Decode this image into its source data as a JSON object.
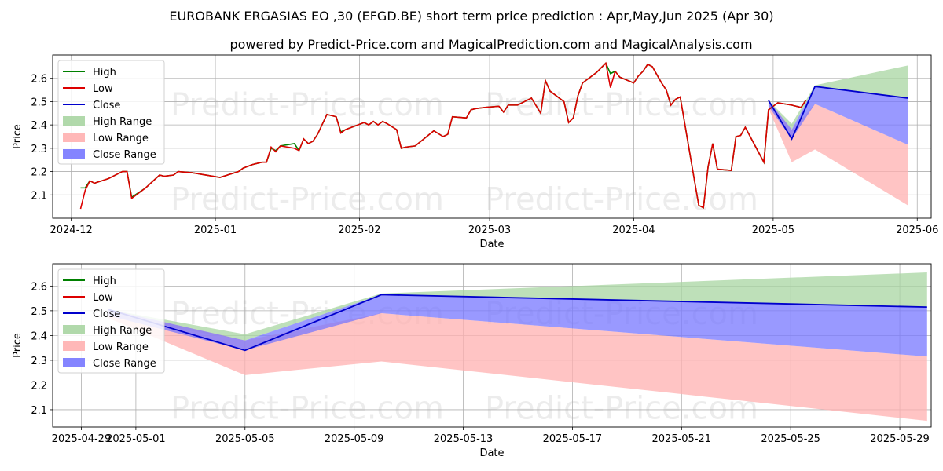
{
  "title": "EUROBANK ERGASIAS EO ,30 (EFGD.BE) short term price prediction : Apr,May,Jun 2025 (Apr 30)",
  "subtitle": "powered by Predict-Price.com and MagicalPrediction.com and MagicalAnalysis.com",
  "watermark": "Predict-Price.com",
  "colors": {
    "high": "#008000",
    "low": "#dd0000",
    "close": "#0000cc",
    "high_range": "#a8d5a2",
    "low_range": "#ffb0b0",
    "close_range": "#7777ff"
  },
  "chart_data": [
    {
      "type": "line",
      "xlabel": "Date",
      "ylabel": "Price",
      "ylim": [
        2.0,
        2.7
      ],
      "x_ticks": [
        "2024-12",
        "2025-01",
        "2025-02",
        "2025-03",
        "2025-04",
        "2025-05",
        "2025-06"
      ],
      "y_ticks": [
        "2.1",
        "2.2",
        "2.3",
        "2.4",
        "2.5",
        "2.6"
      ],
      "grid": true,
      "legend": [
        "High",
        "Low",
        "Close",
        "High Range",
        "Low Range",
        "Close Range"
      ],
      "legend_position": "upper-left",
      "history": [
        [
          "2024-12-03",
          2.13,
          2.04
        ],
        [
          "2024-12-04",
          2.13,
          2.12
        ],
        [
          "2024-12-05",
          2.16,
          2.16
        ],
        [
          "2024-12-06",
          2.15,
          2.15
        ],
        [
          "2024-12-09",
          2.17,
          2.17
        ],
        [
          "2024-12-11",
          2.19,
          2.19
        ],
        [
          "2024-12-12",
          2.2,
          2.2
        ],
        [
          "2024-12-13",
          2.2,
          2.2
        ],
        [
          "2024-12-14",
          2.09,
          2.085
        ],
        [
          "2024-12-17",
          2.13,
          2.13
        ],
        [
          "2024-12-20",
          2.185,
          2.185
        ],
        [
          "2024-12-21",
          2.18,
          2.18
        ],
        [
          "2024-12-23",
          2.185,
          2.185
        ],
        [
          "2024-12-24",
          2.2,
          2.2
        ],
        [
          "2024-12-27",
          2.195,
          2.195
        ],
        [
          "2024-12-30",
          2.185,
          2.185
        ],
        [
          "2025-01-02",
          2.175,
          2.175
        ],
        [
          "2025-01-06",
          2.2,
          2.2
        ],
        [
          "2025-01-07",
          2.215,
          2.215
        ],
        [
          "2025-01-09",
          2.23,
          2.23
        ],
        [
          "2025-01-11",
          2.24,
          2.24
        ],
        [
          "2025-01-12",
          2.24,
          2.24
        ],
        [
          "2025-01-13",
          2.3,
          2.305
        ],
        [
          "2025-01-14",
          2.29,
          2.285
        ],
        [
          "2025-01-15",
          2.31,
          2.31
        ],
        [
          "2025-01-18",
          2.32,
          2.3
        ],
        [
          "2025-01-19",
          2.29,
          2.29
        ],
        [
          "2025-01-20",
          2.34,
          2.34
        ],
        [
          "2025-01-21",
          2.32,
          2.32
        ],
        [
          "2025-01-22",
          2.33,
          2.33
        ],
        [
          "2025-01-23",
          2.36,
          2.36
        ],
        [
          "2025-01-25",
          2.445,
          2.445
        ],
        [
          "2025-01-26",
          2.44,
          2.44
        ],
        [
          "2025-01-27",
          2.435,
          2.435
        ],
        [
          "2025-01-28",
          2.37,
          2.365
        ],
        [
          "2025-01-29",
          2.38,
          2.38
        ],
        [
          "2025-01-31",
          2.395,
          2.395
        ],
        [
          "2025-02-02",
          2.41,
          2.41
        ],
        [
          "2025-02-03",
          2.4,
          2.4
        ],
        [
          "2025-02-04",
          2.415,
          2.415
        ],
        [
          "2025-02-05",
          2.4,
          2.4
        ],
        [
          "2025-02-06",
          2.415,
          2.415
        ],
        [
          "2025-02-07",
          2.405,
          2.405
        ],
        [
          "2025-02-09",
          2.38,
          2.38
        ],
        [
          "2025-02-10",
          2.3,
          2.3
        ],
        [
          "2025-02-11",
          2.305,
          2.305
        ],
        [
          "2025-02-13",
          2.31,
          2.31
        ],
        [
          "2025-02-17",
          2.375,
          2.375
        ],
        [
          "2025-02-19",
          2.35,
          2.35
        ],
        [
          "2025-02-20",
          2.36,
          2.36
        ],
        [
          "2025-02-21",
          2.435,
          2.435
        ],
        [
          "2025-02-24",
          2.43,
          2.43
        ],
        [
          "2025-02-25",
          2.465,
          2.465
        ],
        [
          "2025-02-26",
          2.47,
          2.47
        ],
        [
          "2025-02-28",
          2.475,
          2.475
        ],
        [
          "2025-03-03",
          2.48,
          2.48
        ],
        [
          "2025-03-04",
          2.455,
          2.455
        ],
        [
          "2025-03-05",
          2.485,
          2.485
        ],
        [
          "2025-03-07",
          2.485,
          2.485
        ],
        [
          "2025-03-10",
          2.515,
          2.515
        ],
        [
          "2025-03-12",
          2.45,
          2.45
        ],
        [
          "2025-03-13",
          2.59,
          2.59
        ],
        [
          "2025-03-14",
          2.545,
          2.545
        ],
        [
          "2025-03-17",
          2.5,
          2.5
        ],
        [
          "2025-03-18",
          2.41,
          2.41
        ],
        [
          "2025-03-19",
          2.43,
          2.43
        ],
        [
          "2025-03-20",
          2.525,
          2.525
        ],
        [
          "2025-03-21",
          2.58,
          2.58
        ],
        [
          "2025-03-24",
          2.625,
          2.625
        ],
        [
          "2025-03-25",
          2.645,
          2.645
        ],
        [
          "2025-03-26",
          2.665,
          2.665
        ],
        [
          "2025-03-27",
          2.62,
          2.56
        ],
        [
          "2025-03-28",
          2.63,
          2.63
        ],
        [
          "2025-03-29",
          2.605,
          2.605
        ],
        [
          "2025-04-01",
          2.58,
          2.58
        ],
        [
          "2025-04-02",
          2.61,
          2.61
        ],
        [
          "2025-04-03",
          2.63,
          2.63
        ],
        [
          "2025-04-04",
          2.66,
          2.66
        ],
        [
          "2025-04-05",
          2.65,
          2.65
        ],
        [
          "2025-04-07",
          2.58,
          2.58
        ],
        [
          "2025-04-08",
          2.55,
          2.55
        ],
        [
          "2025-04-09",
          2.485,
          2.485
        ],
        [
          "2025-04-10",
          2.51,
          2.51
        ],
        [
          "2025-04-11",
          2.52,
          2.52
        ],
        [
          "2025-04-14",
          2.17,
          2.17
        ],
        [
          "2025-04-15",
          2.055,
          2.055
        ],
        [
          "2025-04-16",
          2.045,
          2.045
        ],
        [
          "2025-04-17",
          2.22,
          2.22
        ],
        [
          "2025-04-18",
          2.32,
          2.32
        ],
        [
          "2025-04-19",
          2.21,
          2.21
        ],
        [
          "2025-04-22",
          2.205,
          2.205
        ],
        [
          "2025-04-23",
          2.35,
          2.35
        ],
        [
          "2025-04-24",
          2.355,
          2.355
        ],
        [
          "2025-04-25",
          2.39,
          2.39
        ],
        [
          "2025-04-29",
          2.24,
          2.24
        ],
        [
          "2025-04-30",
          2.465,
          2.465
        ],
        [
          "2025-05-01",
          2.48,
          2.48
        ],
        [
          "2025-05-02",
          2.495,
          2.495
        ],
        [
          "2025-05-05",
          2.485,
          2.485
        ],
        [
          "2025-05-06",
          2.48,
          2.48
        ],
        [
          "2025-05-07",
          2.475,
          2.475
        ],
        [
          "2025-05-08",
          2.505,
          2.505
        ]
      ]
    },
    {
      "type": "area",
      "xlabel": "Date",
      "ylabel": "Price",
      "ylim": [
        2.03,
        2.69
      ],
      "x_ticks": [
        "2025-04-29",
        "2025-05-01",
        "2025-05-05",
        "2025-05-09",
        "2025-05-13",
        "2025-05-17",
        "2025-05-21",
        "2025-05-25",
        "2025-05-29"
      ],
      "y_ticks": [
        "2.1",
        "2.2",
        "2.3",
        "2.4",
        "2.5",
        "2.6"
      ],
      "grid": true,
      "legend": [
        "High",
        "Low",
        "Close",
        "High Range",
        "Low Range",
        "Close Range"
      ],
      "legend_position": "upper-left",
      "forecast": [
        {
          "date": "2025-04-30",
          "close": 2.505,
          "high_lo": 2.48,
          "high_hi": 2.505,
          "low_lo": 2.47,
          "low_hi": 2.505,
          "close_lo": 2.48,
          "close_hi": 2.505
        },
        {
          "date": "2025-05-05",
          "close": 2.34,
          "high_lo": 2.38,
          "high_hi": 2.405,
          "low_lo": 2.24,
          "low_hi": 2.38,
          "close_lo": 2.34,
          "close_hi": 2.38
        },
        {
          "date": "2025-05-10",
          "close": 2.565,
          "high_lo": 2.565,
          "high_hi": 2.57,
          "low_lo": 2.295,
          "low_hi": 2.49,
          "close_lo": 2.49,
          "close_hi": 2.565
        },
        {
          "date": "2025-05-30",
          "close": 2.515,
          "high_lo": 2.515,
          "high_hi": 2.655,
          "low_lo": 2.055,
          "low_hi": 2.315,
          "close_lo": 2.315,
          "close_hi": 2.515
        }
      ]
    }
  ]
}
